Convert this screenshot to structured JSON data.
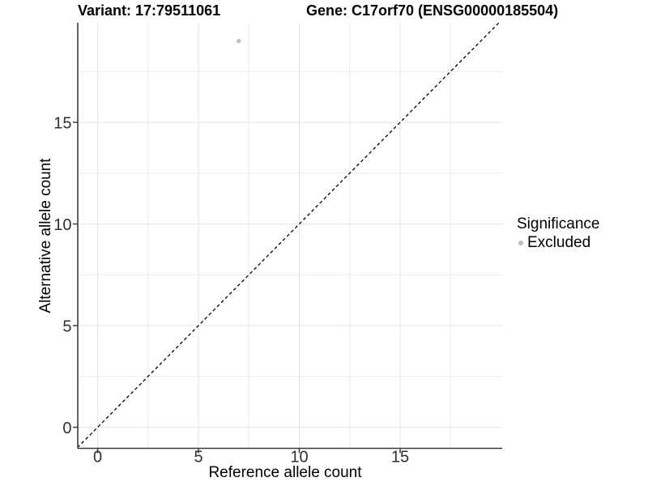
{
  "header": {
    "title_variant": "Variant: 17:79511061",
    "title_gene": "Gene: C17orf70 (ENSG00000185504)"
  },
  "legend": {
    "title": "Significance",
    "items": [
      {
        "label": "Excluded",
        "marker": "circle",
        "color": "#bdbdbd"
      }
    ]
  },
  "chart_data": {
    "type": "scatter",
    "title": "Variant: 17:79511061 — Gene: C17orf70 (ENSG00000185504)",
    "xlabel": "Reference allele count",
    "ylabel": "Alternative allele count",
    "xlim": [
      -1,
      20.1
    ],
    "ylim": [
      -1,
      20.1
    ],
    "x_ticks": [
      0,
      5,
      10,
      15
    ],
    "y_ticks": [
      0,
      5,
      10,
      15
    ],
    "x_minor_ticks": [
      2.5,
      7.5,
      12.5,
      17.5
    ],
    "y_minor_ticks": [
      2.5,
      7.5,
      12.5,
      17.5
    ],
    "grid": true,
    "legend_position": "right",
    "series": [
      {
        "name": "Excluded",
        "color": "#bdbdbd",
        "points": [
          {
            "x": 7,
            "y": 19
          }
        ]
      }
    ],
    "reference_line": {
      "type": "identity (y = x)",
      "style": "dashed",
      "color": "#000000",
      "from": [
        -1,
        -1
      ],
      "to": [
        20.1,
        20.1
      ]
    }
  },
  "colors": {
    "background": "#ffffff",
    "grid_major": "#e4e4e4",
    "grid_minor": "#ececec",
    "axis_line": "#3c3c3c",
    "tick_text": "#303030",
    "title_text": "#000000",
    "point": "#bdbdbd",
    "reference_line": "#000000"
  }
}
